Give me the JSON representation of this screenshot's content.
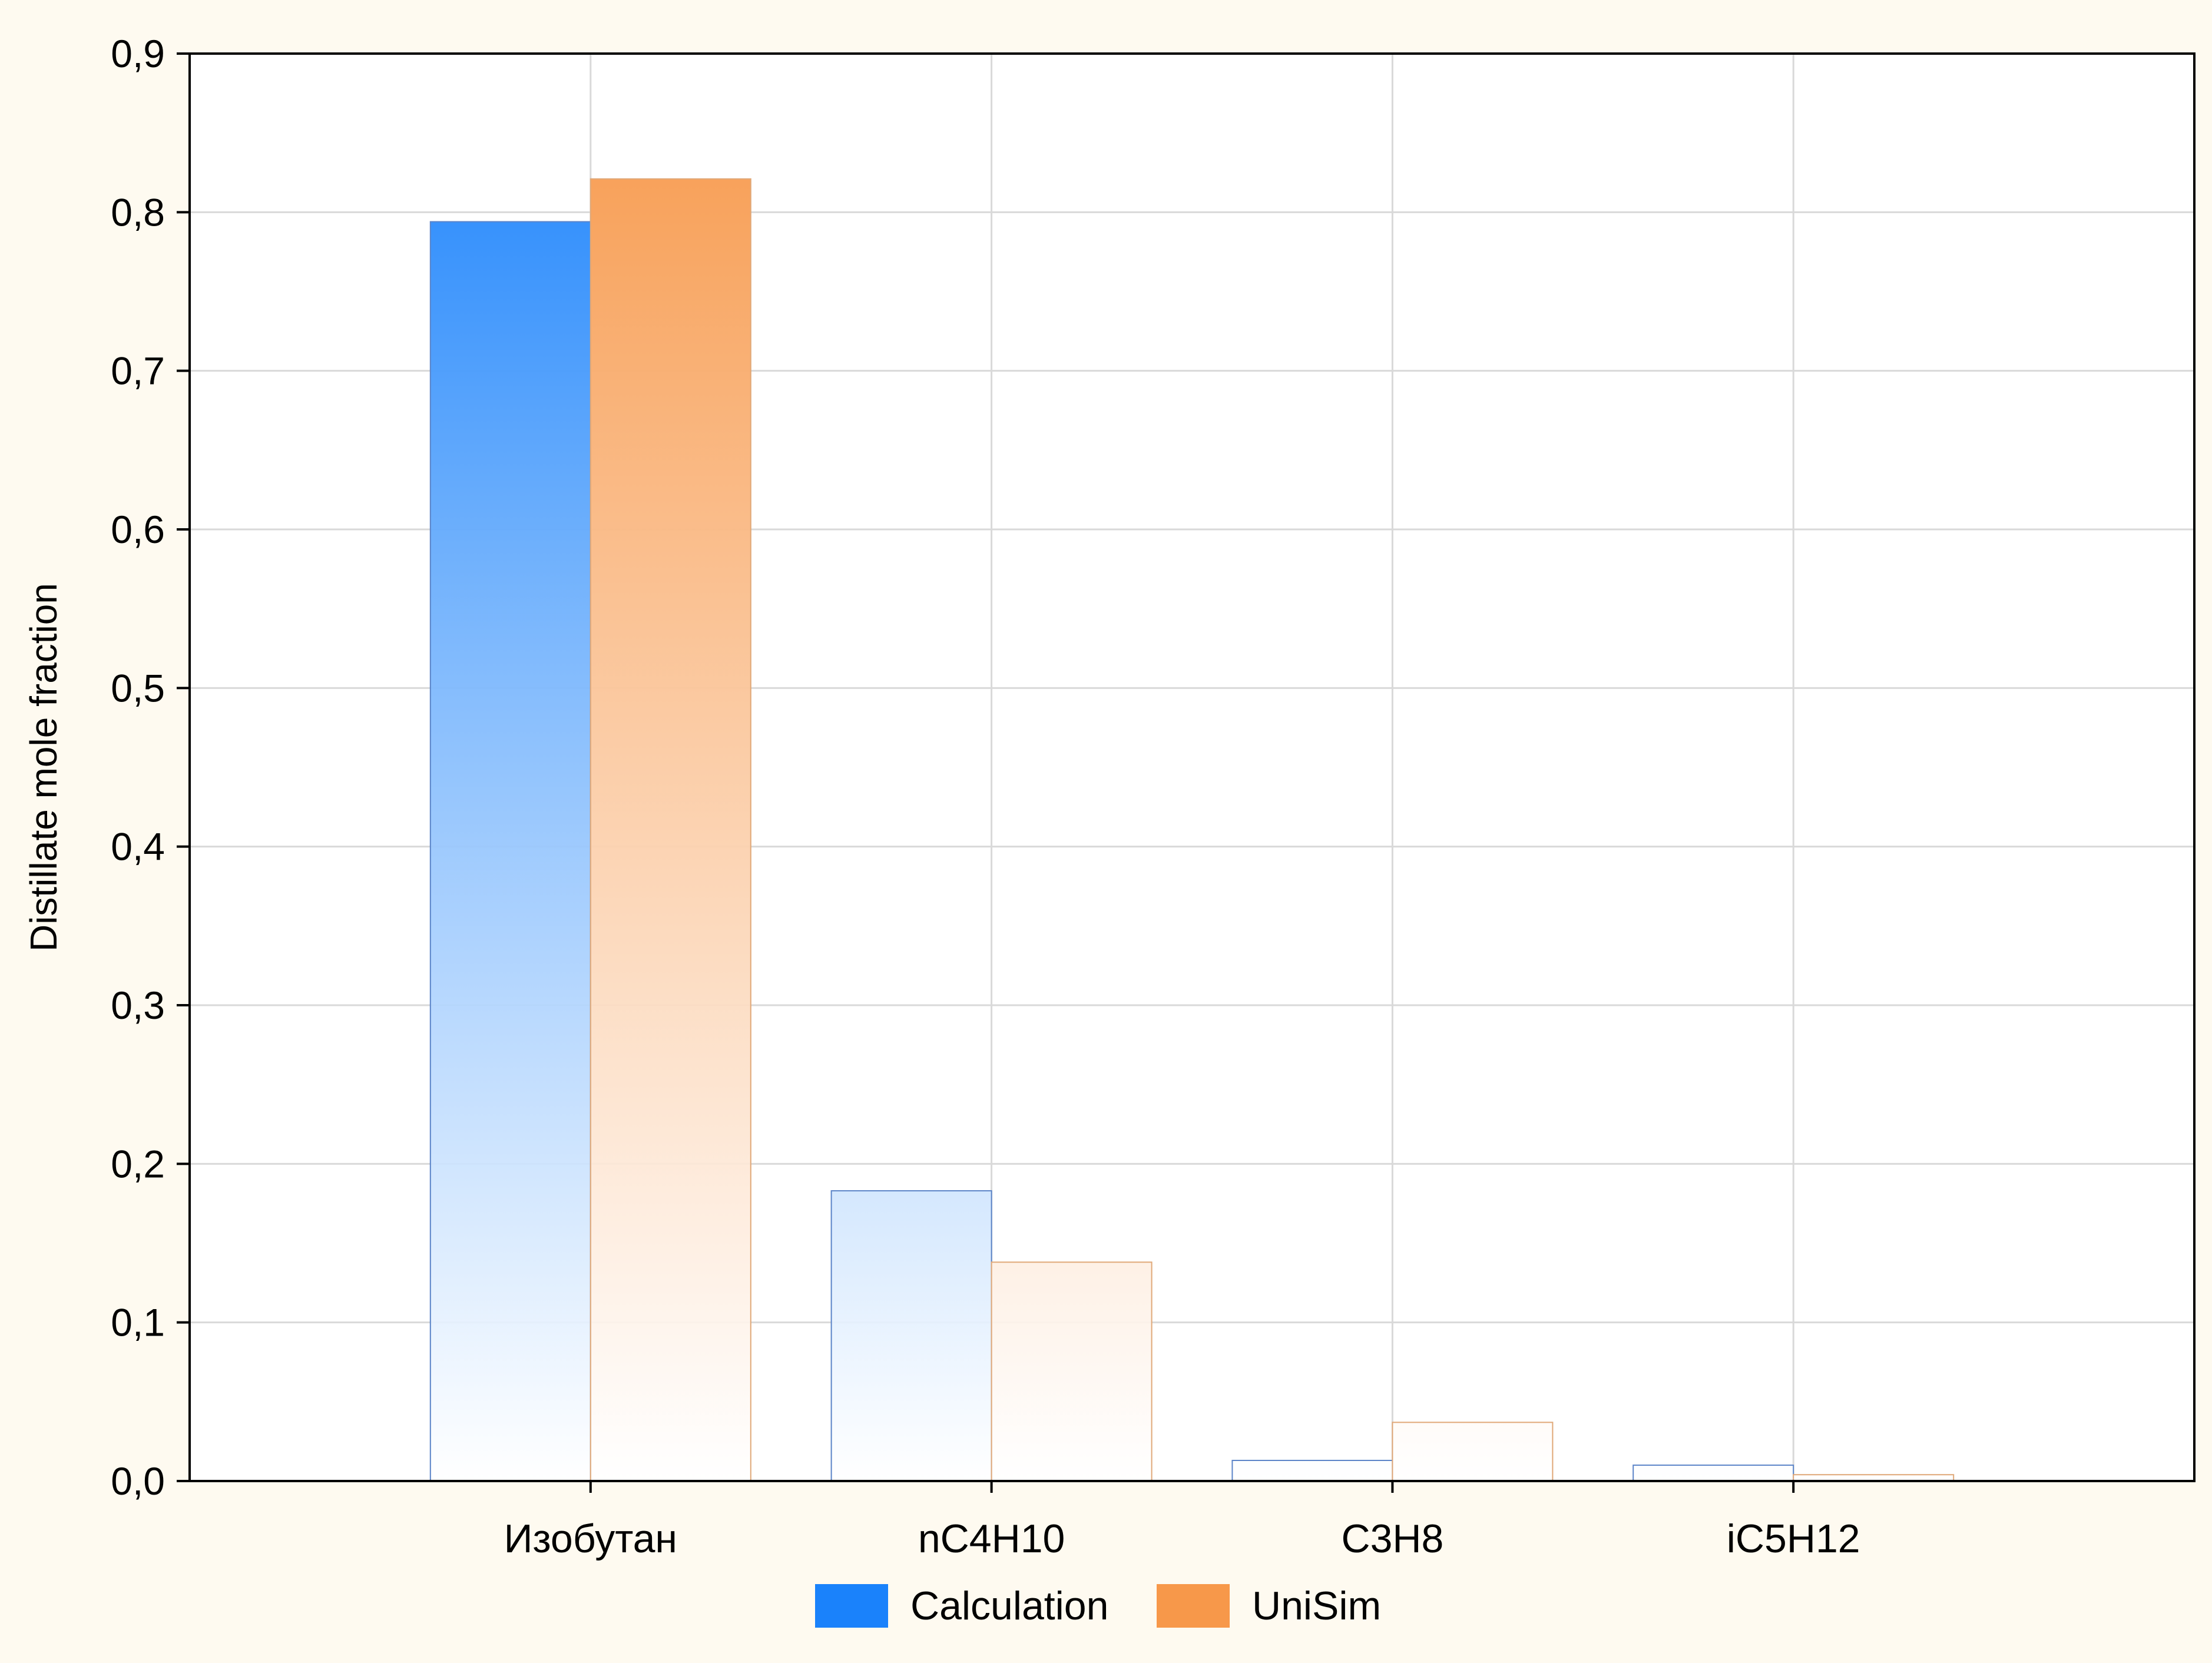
{
  "chart_data": {
    "type": "bar",
    "title": "",
    "xlabel": "",
    "ylabel": "Distillate mole fraction",
    "categories": [
      "Изобутан",
      "nC4H10",
      "C3H8",
      "iC5H12"
    ],
    "series": [
      {
        "name": "Calculation",
        "values": [
          0.794,
          0.183,
          0.013,
          0.01
        ],
        "color": "#1a82fb"
      },
      {
        "name": "UniSim",
        "values": [
          0.821,
          0.138,
          0.037,
          0.004
        ],
        "color": "#f7984a"
      }
    ],
    "ylim": [
      0,
      0.9
    ],
    "yticks": [
      "0,0",
      "0,1",
      "0,2",
      "0,3",
      "0,4",
      "0,5",
      "0,6",
      "0,7",
      "0,8",
      "0,9"
    ],
    "ytick_values": [
      0,
      0.1,
      0.2,
      0.3,
      0.4,
      0.5,
      0.6,
      0.7,
      0.8,
      0.9
    ],
    "grid": true,
    "legend": "bottom",
    "background_color": "#fefaf0",
    "plot_background_color": "#ffffff"
  }
}
